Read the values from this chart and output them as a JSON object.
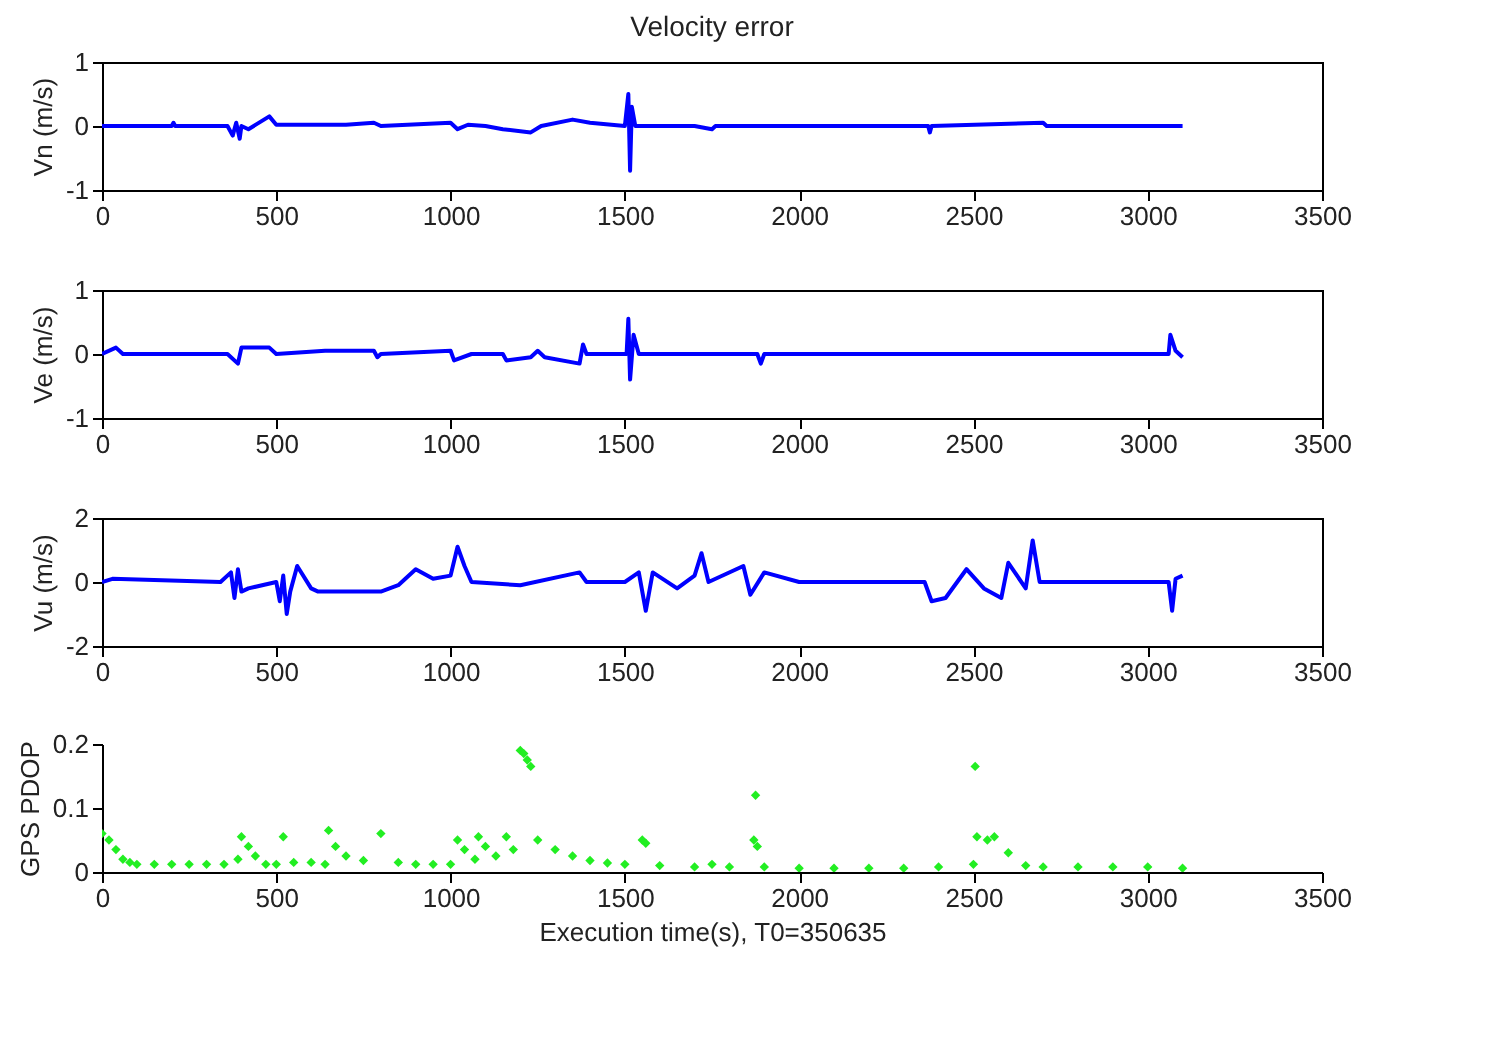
{
  "chart_data": [
    {
      "type": "line",
      "title": "Velocity error",
      "ylabel": "Vn (m/s)",
      "xlim": [
        0,
        3500
      ],
      "xticks": [
        0,
        500,
        1000,
        1500,
        2000,
        2500,
        3000,
        3500
      ],
      "ylim": [
        -1,
        1
      ],
      "yticks": [
        -1,
        0,
        1
      ],
      "grid": false,
      "series": [
        {
          "color": "#0000ff",
          "x": [
            0,
            200,
            205,
            210,
            360,
            375,
            385,
            395,
            400,
            420,
            480,
            500,
            700,
            780,
            800,
            1000,
            1020,
            1050,
            1100,
            1150,
            1230,
            1260,
            1350,
            1400,
            1500,
            1510,
            1515,
            1520,
            1530,
            1700,
            1750,
            1760,
            1900,
            2370,
            2375,
            2380,
            2700,
            2710,
            3100
          ],
          "values": [
            0,
            0,
            0.05,
            0,
            0,
            -0.15,
            0.05,
            -0.2,
            0,
            -0.05,
            0.15,
            0.02,
            0.02,
            0.05,
            0,
            0.05,
            -0.05,
            0.02,
            0,
            -0.05,
            -0.1,
            0,
            0.1,
            0.05,
            0,
            0.5,
            -0.7,
            0.3,
            0,
            0,
            -0.05,
            0,
            0,
            0,
            -0.1,
            0,
            0.05,
            0,
            0
          ]
        }
      ]
    },
    {
      "type": "line",
      "ylabel": "Ve (m/s)",
      "xlim": [
        0,
        3500
      ],
      "xticks": [
        0,
        500,
        1000,
        1500,
        2000,
        2500,
        3000,
        3500
      ],
      "ylim": [
        -1,
        1
      ],
      "yticks": [
        -1,
        0,
        1
      ],
      "grid": false,
      "series": [
        {
          "color": "#0000ff",
          "x": [
            0,
            40,
            60,
            360,
            390,
            400,
            480,
            500,
            640,
            780,
            790,
            800,
            1000,
            1010,
            1060,
            1150,
            1160,
            1230,
            1250,
            1270,
            1370,
            1380,
            1390,
            1505,
            1510,
            1515,
            1525,
            1540,
            1880,
            1890,
            1900,
            3060,
            3065,
            3080,
            3100
          ],
          "values": [
            0,
            0.1,
            0,
            0,
            -0.15,
            0.1,
            0.1,
            0,
            0.05,
            0.05,
            -0.05,
            0,
            0.05,
            -0.1,
            0,
            0,
            -0.1,
            -0.05,
            0.05,
            -0.05,
            -0.15,
            0.15,
            0,
            0,
            0.55,
            -0.4,
            0.3,
            0,
            0,
            -0.15,
            0,
            0,
            0.3,
            0.05,
            -0.05
          ]
        }
      ]
    },
    {
      "type": "line",
      "ylabel": "Vu (m/s)",
      "xlim": [
        0,
        3500
      ],
      "xticks": [
        0,
        500,
        1000,
        1500,
        2000,
        2500,
        3000,
        3500
      ],
      "ylim": [
        -2,
        2
      ],
      "yticks": [
        -2,
        0,
        2
      ],
      "grid": false,
      "series": [
        {
          "color": "#0000ff",
          "x": [
            0,
            30,
            340,
            370,
            380,
            390,
            400,
            420,
            500,
            510,
            520,
            530,
            540,
            560,
            600,
            620,
            800,
            850,
            900,
            950,
            1000,
            1020,
            1040,
            1060,
            1200,
            1370,
            1390,
            1500,
            1540,
            1560,
            1580,
            1650,
            1700,
            1720,
            1740,
            1840,
            1860,
            1900,
            2000,
            2360,
            2380,
            2420,
            2480,
            2530,
            2580,
            2600,
            2650,
            2670,
            2690,
            2800,
            3060,
            3070,
            3080,
            3100
          ],
          "values": [
            0,
            0.1,
            0,
            0.3,
            -0.5,
            0.4,
            -0.3,
            -0.2,
            0,
            -0.6,
            0.2,
            -1.0,
            -0.3,
            0.5,
            -0.2,
            -0.3,
            -0.3,
            -0.1,
            0.4,
            0.1,
            0.2,
            1.1,
            0.5,
            0,
            -0.1,
            0.3,
            0,
            0,
            0.3,
            -0.9,
            0.3,
            -0.2,
            0.2,
            0.9,
            0,
            0.5,
            -0.4,
            0.3,
            0,
            0,
            -0.6,
            -0.5,
            0.4,
            -0.2,
            -0.5,
            0.6,
            -0.2,
            1.3,
            0,
            0,
            0,
            -0.9,
            0.1,
            0.2
          ]
        }
      ]
    },
    {
      "type": "scatter",
      "xlabel": "Execution time(s), T0=350635",
      "ylabel": "GPS PDOP",
      "xlim": [
        0,
        3500
      ],
      "xticks": [
        0,
        500,
        1000,
        1500,
        2000,
        2500,
        3000,
        3500
      ],
      "ylim": [
        0,
        0.2
      ],
      "yticks": [
        0,
        0.1,
        0.2
      ],
      "grid": false,
      "marker": "diamond",
      "series": [
        {
          "color": "#22ee22",
          "x": [
            0,
            20,
            40,
            60,
            80,
            100,
            150,
            200,
            250,
            300,
            350,
            390,
            400,
            420,
            440,
            470,
            500,
            520,
            550,
            600,
            640,
            650,
            670,
            700,
            750,
            800,
            850,
            900,
            950,
            1000,
            1020,
            1040,
            1070,
            1080,
            1100,
            1130,
            1160,
            1180,
            1200,
            1210,
            1220,
            1230,
            1250,
            1300,
            1350,
            1400,
            1450,
            1500,
            1550,
            1560,
            1600,
            1700,
            1750,
            1800,
            1870,
            1875,
            1880,
            1900,
            2000,
            2100,
            2200,
            2300,
            2400,
            2500,
            2505,
            2510,
            2540,
            2560,
            2600,
            2650,
            2700,
            2800,
            2900,
            3000,
            3100
          ],
          "values": [
            0.06,
            0.05,
            0.035,
            0.02,
            0.015,
            0.012,
            0.012,
            0.012,
            0.012,
            0.012,
            0.012,
            0.02,
            0.055,
            0.04,
            0.025,
            0.012,
            0.012,
            0.055,
            0.015,
            0.015,
            0.012,
            0.065,
            0.04,
            0.025,
            0.018,
            0.06,
            0.015,
            0.012,
            0.012,
            0.012,
            0.05,
            0.035,
            0.02,
            0.055,
            0.04,
            0.025,
            0.055,
            0.035,
            0.19,
            0.185,
            0.175,
            0.165,
            0.05,
            0.035,
            0.025,
            0.018,
            0.014,
            0.012,
            0.05,
            0.045,
            0.01,
            0.008,
            0.012,
            0.008,
            0.05,
            0.12,
            0.04,
            0.008,
            0.006,
            0.006,
            0.006,
            0.006,
            0.008,
            0.012,
            0.165,
            0.055,
            0.05,
            0.055,
            0.03,
            0.01,
            0.008,
            0.008,
            0.008,
            0.008,
            0.006
          ]
        }
      ]
    }
  ]
}
